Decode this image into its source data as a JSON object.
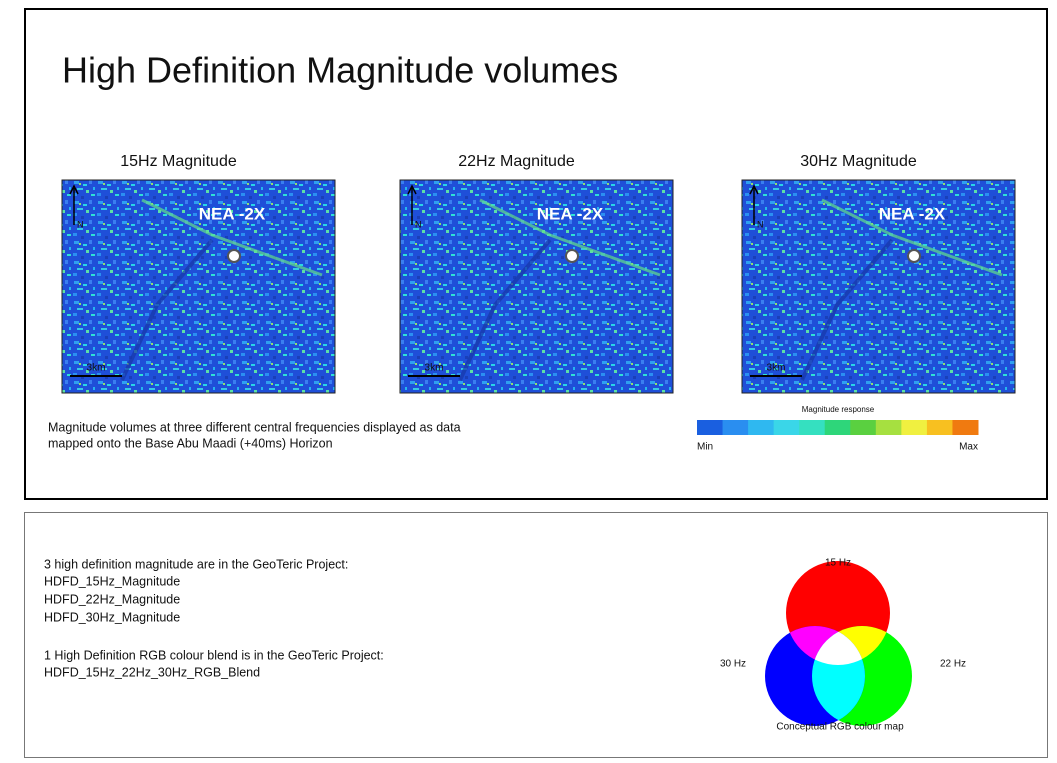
{
  "header": {
    "title": "High Definition Magnitude volumes"
  },
  "panels": [
    {
      "title": "15Hz Magnitude",
      "well": "NEA -2X",
      "north": "N",
      "scale": "3km"
    },
    {
      "title": "22Hz Magnitude",
      "well": "NEA -2X",
      "north": "N",
      "scale": "3km"
    },
    {
      "title": "30Hz Magnitude",
      "well": "NEA -2X",
      "north": "N",
      "scale": "3km"
    }
  ],
  "caption": [
    "Magnitude volumes at three different central frequencies displayed as data",
    "mapped onto the Base Abu Maadi (+40ms) Horizon"
  ],
  "colorbar": {
    "title": "Magnitude response",
    "min": "Min",
    "max": "Max"
  },
  "notes": [
    "3 high definition magnitude are in the GeoTeric Project:",
    "HDFD_15Hz_Magnitude",
    "HDFD_22Hz_Magnitude",
    "HDFD_30Hz_Magnitude",
    "1 High Definition RGB colour blend is in the GeoTeric Project:",
    "HDFD_15Hz_22Hz_30Hz_RGB_Blend"
  ],
  "rgb_map": {
    "red": "15 Hz",
    "green": "22 Hz",
    "blue": "30 Hz",
    "caption": "Conceptual RGB colour map"
  }
}
